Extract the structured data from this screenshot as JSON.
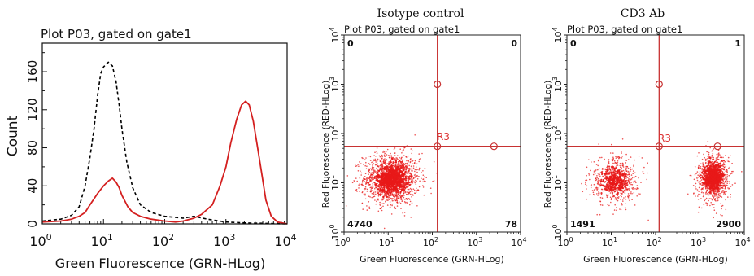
{
  "chart_data": [
    {
      "type": "line",
      "title": "Plot P03, gated on gate1",
      "xlabel": "Green Fluorescence (GRN-HLog)",
      "ylabel": "Count",
      "x_scale": "log",
      "xlim": [
        1,
        10000
      ],
      "ylim": [
        0,
        190
      ],
      "x_ticks": [
        {
          "v": 1,
          "base": "10",
          "exp": "0"
        },
        {
          "v": 10,
          "base": "10",
          "exp": "1"
        },
        {
          "v": 100,
          "base": "10",
          "exp": "2"
        },
        {
          "v": 1000,
          "base": "10",
          "exp": "3"
        },
        {
          "v": 10000,
          "base": "10",
          "exp": "4"
        }
      ],
      "y_ticks": [
        "0",
        "40",
        "80",
        "120",
        "160"
      ],
      "series": [
        {
          "style": "dashed",
          "color": "#000000",
          "points": [
            [
              1,
              3
            ],
            [
              2,
              5
            ],
            [
              3,
              9
            ],
            [
              4,
              18
            ],
            [
              5,
              40
            ],
            [
              6,
              70
            ],
            [
              7,
              100
            ],
            [
              8,
              135
            ],
            [
              9,
              158
            ],
            [
              10,
              165
            ],
            [
              12,
              170
            ],
            [
              14,
              166
            ],
            [
              16,
              150
            ],
            [
              18,
              125
            ],
            [
              20,
              100
            ],
            [
              24,
              65
            ],
            [
              30,
              38
            ],
            [
              40,
              20
            ],
            [
              60,
              12
            ],
            [
              100,
              8
            ],
            [
              200,
              6
            ],
            [
              300,
              8
            ],
            [
              500,
              5
            ],
            [
              1000,
              2
            ],
            [
              2000,
              1
            ],
            [
              10000,
              0
            ]
          ]
        },
        {
          "style": "solid",
          "color": "#d42020",
          "points": [
            [
              1,
              2
            ],
            [
              2,
              3
            ],
            [
              3,
              5
            ],
            [
              4,
              8
            ],
            [
              5,
              12
            ],
            [
              6,
              20
            ],
            [
              8,
              32
            ],
            [
              10,
              40
            ],
            [
              12,
              45
            ],
            [
              14,
              48
            ],
            [
              16,
              44
            ],
            [
              18,
              38
            ],
            [
              20,
              30
            ],
            [
              25,
              18
            ],
            [
              30,
              12
            ],
            [
              40,
              8
            ],
            [
              60,
              5
            ],
            [
              100,
              3
            ],
            [
              150,
              2
            ],
            [
              200,
              3
            ],
            [
              300,
              6
            ],
            [
              400,
              10
            ],
            [
              600,
              20
            ],
            [
              800,
              40
            ],
            [
              1000,
              60
            ],
            [
              1200,
              85
            ],
            [
              1500,
              110
            ],
            [
              1800,
              125
            ],
            [
              2100,
              129
            ],
            [
              2400,
              125
            ],
            [
              2800,
              108
            ],
            [
              3200,
              85
            ],
            [
              3800,
              55
            ],
            [
              4500,
              25
            ],
            [
              5500,
              8
            ],
            [
              7000,
              2
            ],
            [
              10000,
              0
            ]
          ]
        }
      ]
    },
    {
      "type": "scatter",
      "heading": "Isotype control",
      "plot_title": "Plot P03, gated on gate1",
      "xlabel": "Green Fluorescence (GRN-HLog)",
      "ylabel": "Red Fluorescence (RED-HLog)",
      "x_scale": "log",
      "y_scale": "log",
      "xlim": [
        1,
        10000
      ],
      "ylim": [
        1,
        10000
      ],
      "gate_name": "R3",
      "gate_x": 130,
      "gate_y": 55,
      "handles": [
        [
          130,
          1000
        ],
        [
          130,
          55
        ],
        [
          2500,
          55
        ]
      ],
      "quadrant_counts": {
        "upper_left": "0",
        "upper_right": "0",
        "lower_left": "4740",
        "lower_right": "78"
      },
      "clusters": [
        {
          "center": [
            12,
            12
          ],
          "spread": [
            0.32,
            0.26
          ],
          "n": 1400,
          "dense_n": 700,
          "dense_spread": [
            0.16,
            0.14
          ]
        }
      ]
    },
    {
      "type": "scatter",
      "heading": "CD3 Ab",
      "plot_title": "Plot P03, gated on gate1",
      "xlabel": "Green Fluorescence (GRN-HLog)",
      "ylabel": "Red Fluorescence (RED-HLog)",
      "x_scale": "log",
      "y_scale": "log",
      "xlim": [
        1,
        10000
      ],
      "ylim": [
        1,
        10000
      ],
      "gate_name": "R3",
      "gate_x": 120,
      "gate_y": 55,
      "handles": [
        [
          120,
          1000
        ],
        [
          120,
          55
        ],
        [
          2500,
          55
        ]
      ],
      "quadrant_counts": {
        "upper_left": "0",
        "upper_right": "1",
        "lower_left": "1491",
        "lower_right": "2900"
      },
      "clusters": [
        {
          "center": [
            12,
            11
          ],
          "spread": [
            0.28,
            0.24
          ],
          "n": 600,
          "dense_n": 250,
          "dense_spread": [
            0.14,
            0.12
          ]
        },
        {
          "center": [
            2000,
            13
          ],
          "spread": [
            0.17,
            0.24
          ],
          "n": 1000,
          "dense_n": 550,
          "dense_spread": [
            0.09,
            0.12
          ]
        }
      ]
    }
  ],
  "colors": {
    "red": "#d42020",
    "gate_line": "#c83232",
    "dots": "#e81818"
  }
}
